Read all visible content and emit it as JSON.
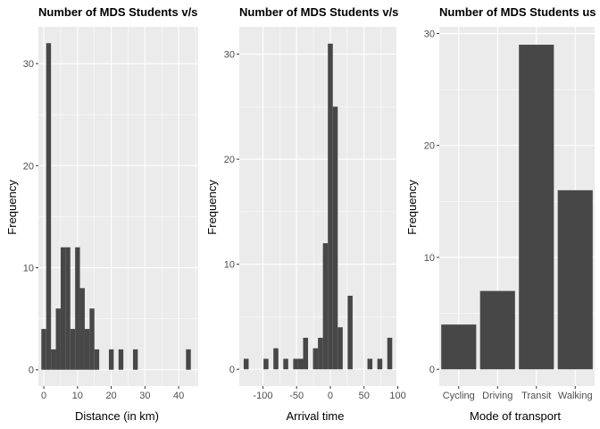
{
  "colors": {
    "panel_bg": "#ebebeb",
    "bar_fill": "#474747",
    "grid": "#ffffff",
    "tick_label": "#4d4d4d"
  },
  "chart_data": [
    {
      "type": "bar",
      "title": "Number of MDS Students v/s",
      "xlabel": "Distance (in km)",
      "ylabel": "Frequency",
      "xlim": [
        -1.6,
        45.8
      ],
      "ylim": [
        -1.6,
        33.6
      ],
      "x_ticks": [
        0,
        10,
        20,
        30,
        40
      ],
      "y_ticks": [
        0,
        10,
        20,
        30
      ],
      "bin_width": 1.43,
      "bins": [
        {
          "x": 0.0,
          "count": 4
        },
        {
          "x": 1.43,
          "count": 32
        },
        {
          "x": 2.86,
          "count": 2
        },
        {
          "x": 4.29,
          "count": 6
        },
        {
          "x": 5.72,
          "count": 12
        },
        {
          "x": 7.15,
          "count": 12
        },
        {
          "x": 8.58,
          "count": 4
        },
        {
          "x": 10.01,
          "count": 12
        },
        {
          "x": 11.44,
          "count": 8
        },
        {
          "x": 12.87,
          "count": 4
        },
        {
          "x": 14.3,
          "count": 6
        },
        {
          "x": 15.73,
          "count": 2
        },
        {
          "x": 20.02,
          "count": 2
        },
        {
          "x": 22.88,
          "count": 2
        },
        {
          "x": 27.17,
          "count": 2
        },
        {
          "x": 42.9,
          "count": 2
        }
      ]
    },
    {
      "type": "bar",
      "title": "Number of MDS Students v/s",
      "xlabel": "Arrival time",
      "ylabel": "Frequency",
      "xlim": [
        -135,
        98
      ],
      "ylim": [
        -1.6,
        32.6
      ],
      "x_ticks": [
        -100,
        -50,
        0,
        50,
        100
      ],
      "y_ticks": [
        0,
        10,
        20,
        30
      ],
      "bin_width": 7.34,
      "bins": [
        {
          "x": -124.78,
          "count": 1
        },
        {
          "x": -95.42,
          "count": 1
        },
        {
          "x": -88.08,
          "count": 0
        },
        {
          "x": -80.74,
          "count": 2
        },
        {
          "x": -66.06,
          "count": 1
        },
        {
          "x": -51.38,
          "count": 1
        },
        {
          "x": -44.04,
          "count": 1
        },
        {
          "x": -36.7,
          "count": 3
        },
        {
          "x": -22.02,
          "count": 2
        },
        {
          "x": -14.68,
          "count": 3
        },
        {
          "x": -7.34,
          "count": 12
        },
        {
          "x": 0.0,
          "count": 31
        },
        {
          "x": 7.34,
          "count": 25
        },
        {
          "x": 14.68,
          "count": 4
        },
        {
          "x": 29.36,
          "count": 7
        },
        {
          "x": 58.72,
          "count": 1
        },
        {
          "x": 73.4,
          "count": 1
        },
        {
          "x": 88.08,
          "count": 3
        }
      ]
    },
    {
      "type": "bar",
      "title": "Number of MDS Students us",
      "xlabel": "Mode of transport",
      "ylabel": "Frequency",
      "ylim": [
        -1.5,
        30.6
      ],
      "y_ticks": [
        0,
        10,
        20,
        30
      ],
      "categories": [
        "Cycling",
        "Driving",
        "Transit",
        "Walking"
      ],
      "values": [
        4,
        7,
        29,
        16
      ]
    }
  ]
}
